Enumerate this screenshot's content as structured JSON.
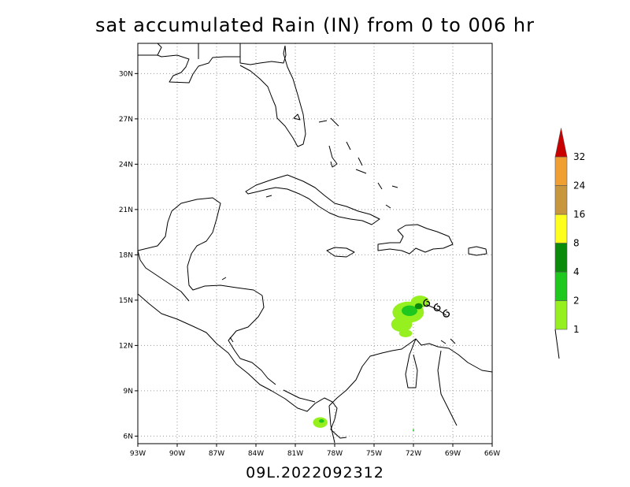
{
  "title": "sat accumulated Rain (IN) from 0 to 006 hr",
  "footer": "09L.2022092312",
  "map": {
    "lon_range": [
      -93,
      -66
    ],
    "lat_range": [
      5.5,
      32
    ]
  },
  "axes": {
    "lon_ticks": [
      {
        "value": -93,
        "label": "93W"
      },
      {
        "value": -90,
        "label": "90W"
      },
      {
        "value": -87,
        "label": "87W"
      },
      {
        "value": -84,
        "label": "84W"
      },
      {
        "value": -81,
        "label": "81W"
      },
      {
        "value": -78,
        "label": "78W"
      },
      {
        "value": -75,
        "label": "75W"
      },
      {
        "value": -72,
        "label": "72W"
      },
      {
        "value": -69,
        "label": "69W"
      },
      {
        "value": -66,
        "label": "66W"
      }
    ],
    "lat_ticks": [
      {
        "value": 6,
        "label": "6N"
      },
      {
        "value": 9,
        "label": "9N"
      },
      {
        "value": 12,
        "label": "12N"
      },
      {
        "value": 15,
        "label": "15N"
      },
      {
        "value": 18,
        "label": "18N"
      },
      {
        "value": 21,
        "label": "21N"
      },
      {
        "value": 24,
        "label": "24N"
      },
      {
        "value": 27,
        "label": "27N"
      },
      {
        "value": 30,
        "label": "30N"
      }
    ]
  },
  "colorbar": {
    "levels": [
      {
        "label": "1",
        "color": "#96f020"
      },
      {
        "label": "2",
        "color": "#1ec81e"
      },
      {
        "label": "4",
        "color": "#0a8c0a"
      },
      {
        "label": "8",
        "color": "#ffff1e"
      },
      {
        "label": "16",
        "color": "#c8963c"
      },
      {
        "label": "24",
        "color": "#f0a032"
      },
      {
        "label": "32",
        "color": "#c80000"
      }
    ]
  },
  "storm_track": [
    {
      "lon": -71.0,
      "lat": 14.7
    },
    {
      "lon": -70.2,
      "lat": 14.4
    },
    {
      "lon": -69.5,
      "lat": 14.0
    }
  ],
  "rain_areas": [
    {
      "lon": -72.4,
      "lat": 14.2,
      "rx": 1.2,
      "ry": 0.7,
      "level": 0
    },
    {
      "lon": -72.9,
      "lat": 13.4,
      "rx": 0.8,
      "ry": 0.5,
      "level": 0
    },
    {
      "lon": -71.5,
      "lat": 14.9,
      "rx": 0.7,
      "ry": 0.4,
      "level": 0
    },
    {
      "lon": -72.6,
      "lat": 12.8,
      "rx": 0.5,
      "ry": 0.25,
      "level": 0
    },
    {
      "lon": -72.3,
      "lat": 14.3,
      "rx": 0.6,
      "ry": 0.35,
      "level": 1
    },
    {
      "lon": -71.6,
      "lat": 14.6,
      "rx": 0.3,
      "ry": 0.2,
      "level": 2
    },
    {
      "lon": -79.1,
      "lat": 6.9,
      "rx": 0.55,
      "ry": 0.35,
      "level": 0
    },
    {
      "lon": -79.0,
      "lat": 7.0,
      "rx": 0.2,
      "ry": 0.12,
      "level": 1
    },
    {
      "lon": -72.0,
      "lat": 6.4,
      "rx": 0.06,
      "ry": 0.06,
      "level": 1
    }
  ]
}
